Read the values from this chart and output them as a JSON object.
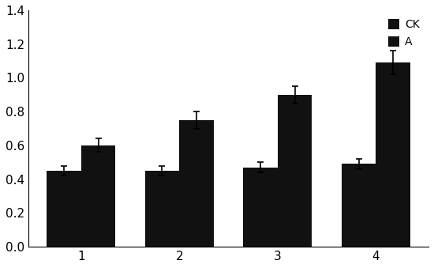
{
  "categories": [
    1,
    2,
    3,
    4
  ],
  "ck_values": [
    0.45,
    0.45,
    0.47,
    0.49
  ],
  "a_values": [
    0.6,
    0.75,
    0.9,
    1.09
  ],
  "ck_errors": [
    0.03,
    0.03,
    0.03,
    0.03
  ],
  "a_errors": [
    0.04,
    0.05,
    0.05,
    0.07
  ],
  "ck_color": "#111111",
  "a_color": "#111111",
  "bar_width": 0.35,
  "ylim": [
    0,
    1.4
  ],
  "yticks": [
    0,
    0.2,
    0.4,
    0.6,
    0.8,
    1.0,
    1.2,
    1.4
  ],
  "legend_labels": [
    "CK",
    "A"
  ],
  "background_color": "#ffffff"
}
